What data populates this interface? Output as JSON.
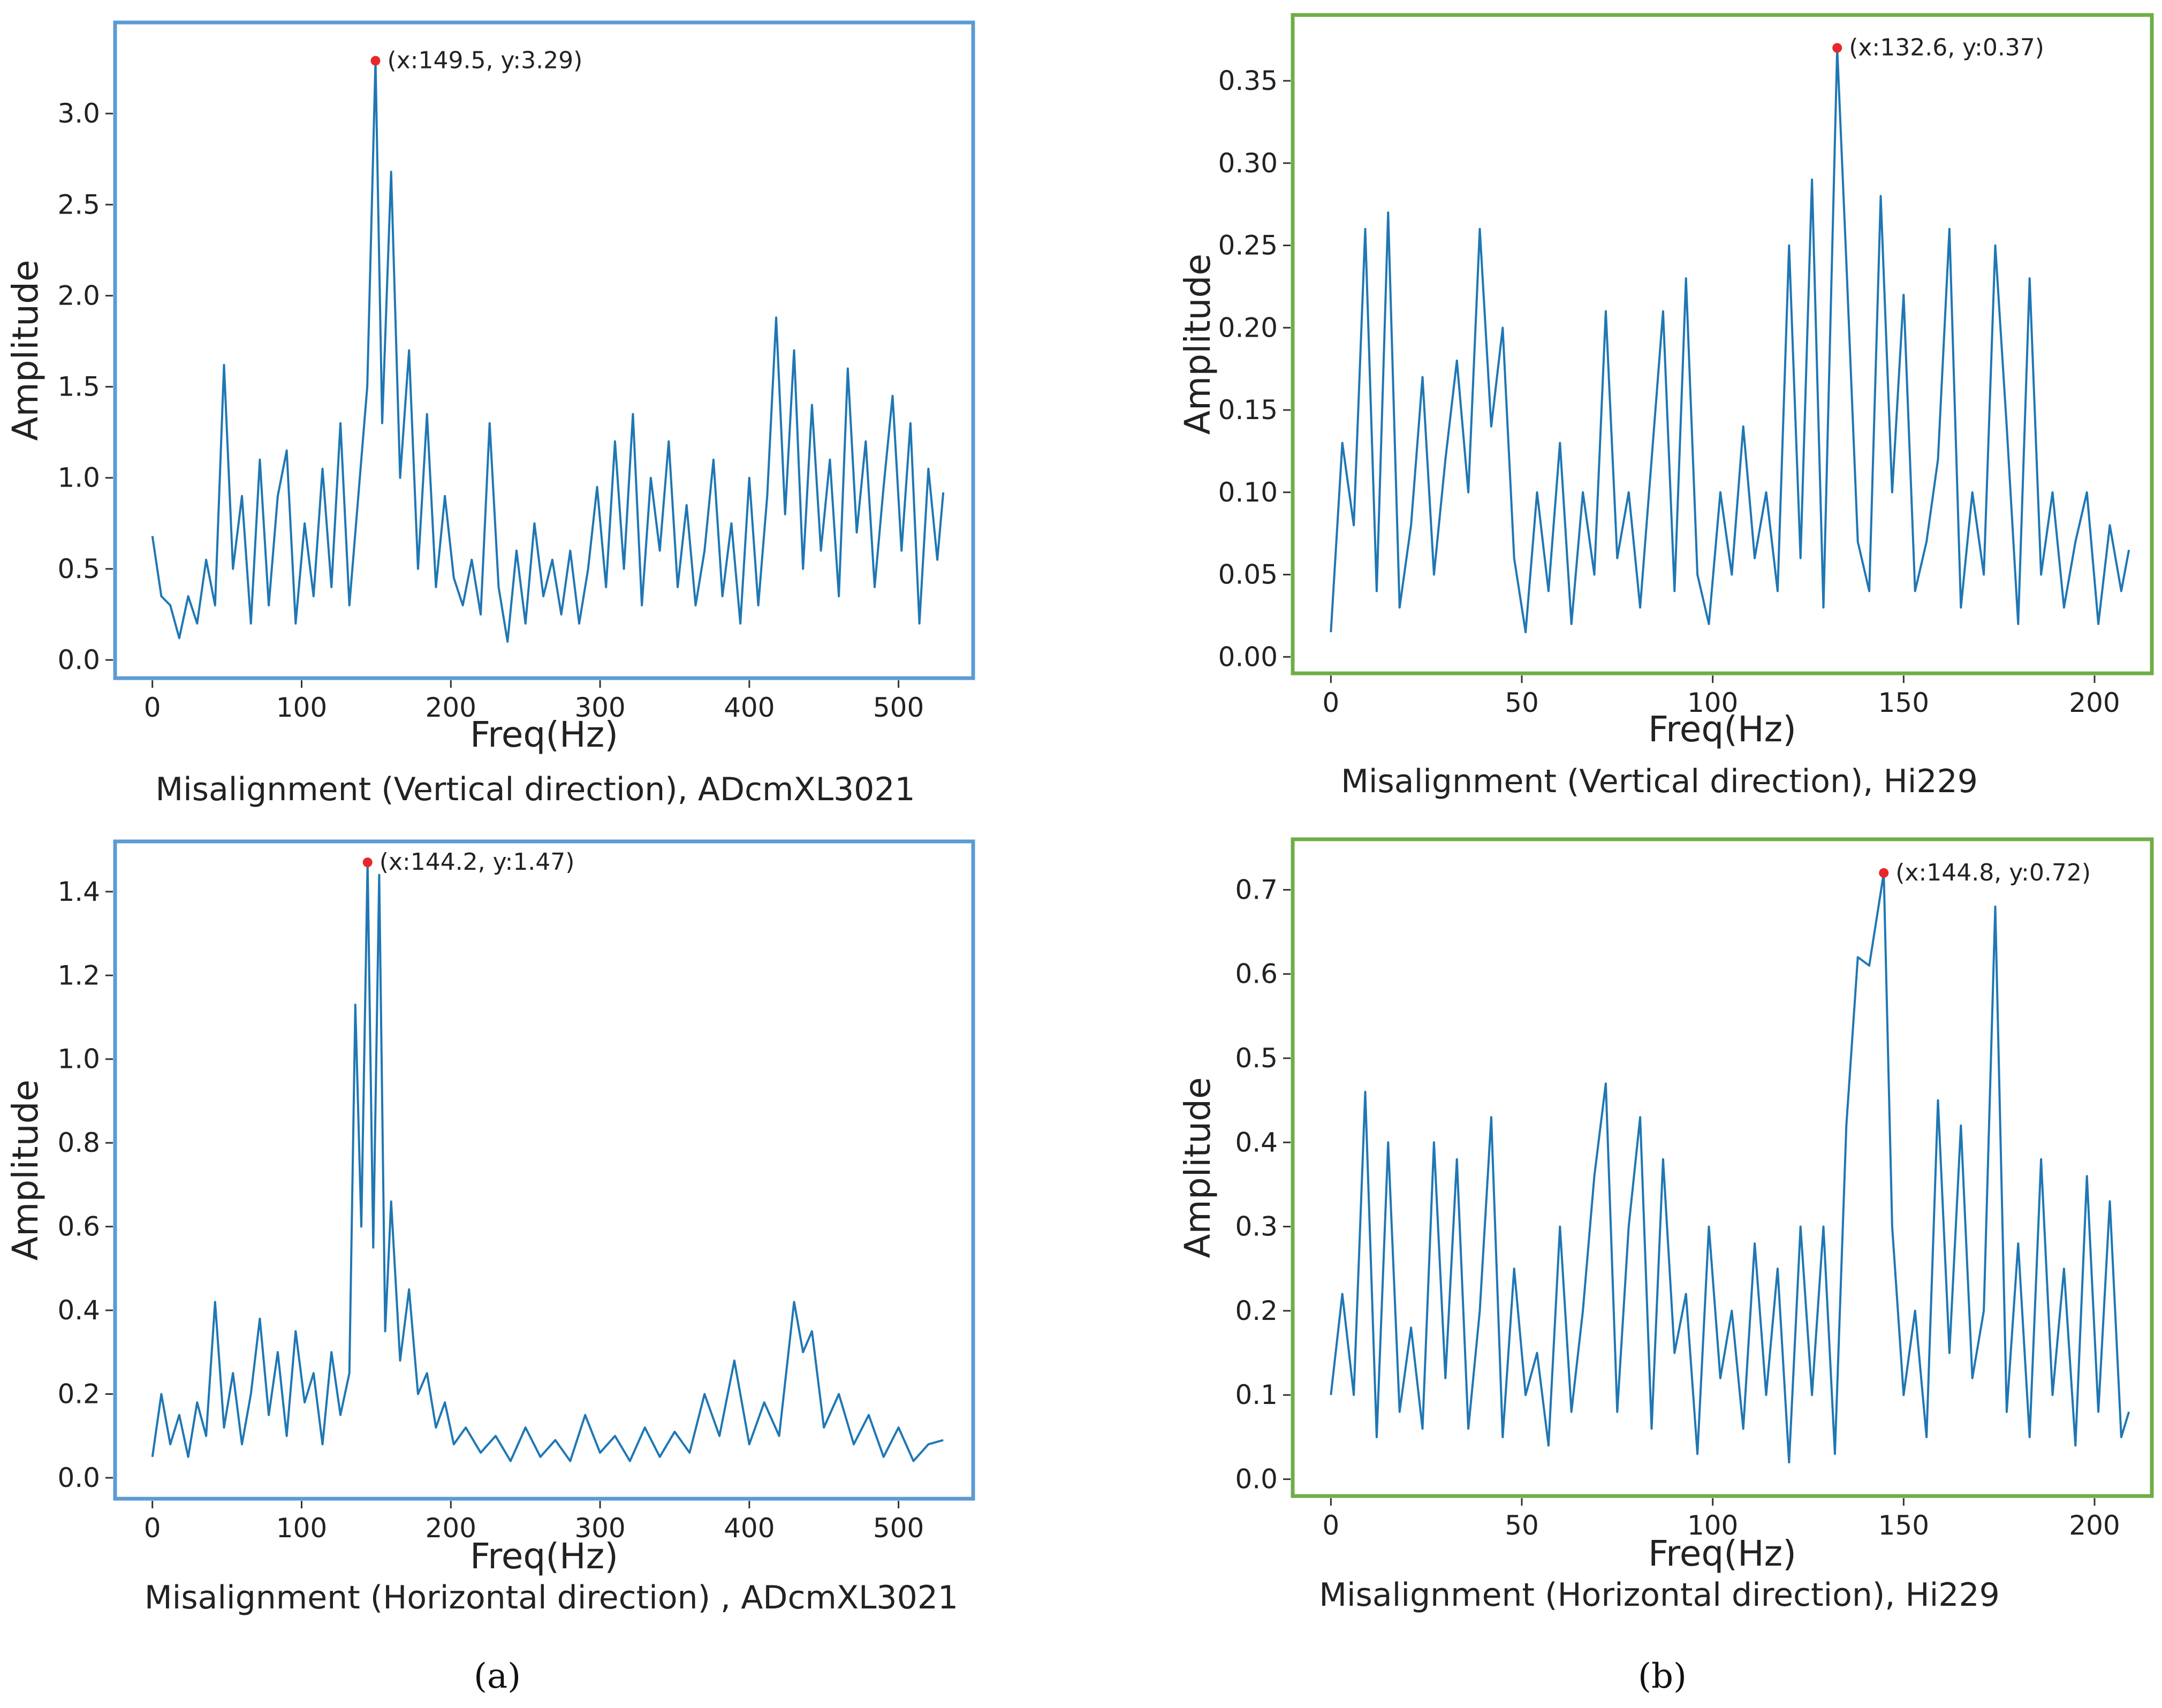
{
  "chart_data": [
    {
      "type": "line",
      "title": "",
      "caption": "Misalignment (Vertical direction), ADcmXL3021",
      "xlabel": "Freq(Hz)",
      "ylabel": "Amplitude",
      "xlim": [
        -25,
        550
      ],
      "ylim": [
        -0.1,
        3.5
      ],
      "xticks": [
        0,
        100,
        200,
        300,
        400,
        500
      ],
      "xtick_labels": [
        "0",
        "100",
        "200",
        "300",
        "400",
        "500"
      ],
      "yticks": [
        0.0,
        0.5,
        1.0,
        1.5,
        2.0,
        2.5,
        3.0
      ],
      "ytick_labels": [
        "0.0",
        "0.5",
        "1.0",
        "1.5",
        "2.0",
        "2.5",
        "3.0"
      ],
      "frame_color": "#5b9bd5",
      "line_color": "#1f77b4",
      "peak": {
        "x": 149.5,
        "y": 3.29,
        "label": "(x:149.5, y:3.29)"
      },
      "series": [
        {
          "name": "spectrum",
          "x": [
            0,
            6,
            12,
            18,
            24,
            30,
            36,
            42,
            48,
            54,
            60,
            66,
            72,
            78,
            84,
            90,
            96,
            102,
            108,
            114,
            120,
            126,
            132,
            138,
            144,
            149.5,
            154,
            160,
            166,
            172,
            178,
            184,
            190,
            196,
            202,
            208,
            214,
            220,
            226,
            232,
            238,
            244,
            250,
            256,
            262,
            268,
            274,
            280,
            286,
            292,
            298,
            304,
            310,
            316,
            322,
            328,
            334,
            340,
            346,
            352,
            358,
            364,
            370,
            376,
            382,
            388,
            394,
            400,
            406,
            412,
            418,
            424,
            430,
            436,
            442,
            448,
            454,
            460,
            466,
            472,
            478,
            484,
            490,
            496,
            502,
            508,
            514,
            520,
            526,
            530
          ],
          "values": [
            0.68,
            0.35,
            0.3,
            0.12,
            0.35,
            0.2,
            0.55,
            0.3,
            1.62,
            0.5,
            0.9,
            0.2,
            1.1,
            0.3,
            0.9,
            1.15,
            0.2,
            0.75,
            0.35,
            1.05,
            0.4,
            1.3,
            0.3,
            0.9,
            1.5,
            3.29,
            1.3,
            2.68,
            1.0,
            1.7,
            0.5,
            1.35,
            0.4,
            0.9,
            0.45,
            0.3,
            0.55,
            0.25,
            1.3,
            0.4,
            0.1,
            0.6,
            0.2,
            0.75,
            0.35,
            0.55,
            0.25,
            0.6,
            0.2,
            0.5,
            0.95,
            0.4,
            1.2,
            0.5,
            1.35,
            0.3,
            1.0,
            0.6,
            1.2,
            0.4,
            0.85,
            0.3,
            0.6,
            1.1,
            0.35,
            0.75,
            0.2,
            1.0,
            0.3,
            0.9,
            1.88,
            0.8,
            1.7,
            0.5,
            1.4,
            0.6,
            1.1,
            0.35,
            1.6,
            0.7,
            1.2,
            0.4,
            0.95,
            1.45,
            0.6,
            1.3,
            0.2,
            1.05,
            0.55,
            0.92
          ]
        }
      ]
    },
    {
      "type": "line",
      "title": "",
      "caption": "Misalignment (Vertical direction), Hi229",
      "xlabel": "Freq(Hz)",
      "ylabel": "Amplitude",
      "xlim": [
        -10,
        215
      ],
      "ylim": [
        -0.01,
        0.39
      ],
      "xticks": [
        0,
        50,
        100,
        150,
        200
      ],
      "xtick_labels": [
        "0",
        "50",
        "100",
        "150",
        "200"
      ],
      "yticks": [
        0.0,
        0.05,
        0.1,
        0.15,
        0.2,
        0.25,
        0.3,
        0.35
      ],
      "ytick_labels": [
        "0.00",
        "0.05",
        "0.10",
        "0.15",
        "0.20",
        "0.25",
        "0.30",
        "0.35"
      ],
      "frame_color": "#70ad47",
      "line_color": "#1f77b4",
      "peak": {
        "x": 132.6,
        "y": 0.37,
        "label": "(x:132.6, y:0.37)"
      },
      "series": [
        {
          "name": "spectrum",
          "x": [
            0,
            3,
            6,
            9,
            12,
            15,
            18,
            21,
            24,
            27,
            30,
            33,
            36,
            39,
            42,
            45,
            48,
            51,
            54,
            57,
            60,
            63,
            66,
            69,
            72,
            75,
            78,
            81,
            84,
            87,
            90,
            93,
            96,
            99,
            102,
            105,
            108,
            111,
            114,
            117,
            120,
            123,
            126,
            129,
            132.6,
            135,
            138,
            141,
            144,
            147,
            150,
            153,
            156,
            159,
            162,
            165,
            168,
            171,
            174,
            177,
            180,
            183,
            186,
            189,
            192,
            195,
            198,
            201,
            204,
            207,
            209
          ],
          "values": [
            0.015,
            0.13,
            0.08,
            0.26,
            0.04,
            0.27,
            0.03,
            0.08,
            0.17,
            0.05,
            0.12,
            0.18,
            0.1,
            0.26,
            0.14,
            0.2,
            0.06,
            0.015,
            0.1,
            0.04,
            0.13,
            0.02,
            0.1,
            0.05,
            0.21,
            0.06,
            0.1,
            0.03,
            0.12,
            0.21,
            0.04,
            0.23,
            0.05,
            0.02,
            0.1,
            0.05,
            0.14,
            0.06,
            0.1,
            0.04,
            0.25,
            0.06,
            0.29,
            0.03,
            0.37,
            0.24,
            0.07,
            0.04,
            0.28,
            0.1,
            0.22,
            0.04,
            0.07,
            0.12,
            0.26,
            0.03,
            0.1,
            0.05,
            0.25,
            0.14,
            0.02,
            0.23,
            0.05,
            0.1,
            0.03,
            0.07,
            0.1,
            0.02,
            0.08,
            0.04,
            0.065
          ]
        }
      ]
    },
    {
      "type": "line",
      "title": "",
      "caption": "Misalignment (Horizontal direction) , ADcmXL3021",
      "xlabel": "Freq(Hz)",
      "ylabel": "Amplitude",
      "xlim": [
        -25,
        550
      ],
      "ylim": [
        -0.05,
        1.52
      ],
      "xticks": [
        0,
        100,
        200,
        300,
        400,
        500
      ],
      "xtick_labels": [
        "0",
        "100",
        "200",
        "300",
        "400",
        "500"
      ],
      "yticks": [
        0.0,
        0.2,
        0.4,
        0.6,
        0.8,
        1.0,
        1.2,
        1.4
      ],
      "ytick_labels": [
        "0.0",
        "0.2",
        "0.4",
        "0.6",
        "0.8",
        "1.0",
        "1.2",
        "1.4"
      ],
      "frame_color": "#5b9bd5",
      "line_color": "#1f77b4",
      "peak": {
        "x": 144.2,
        "y": 1.47,
        "label": "(x:144.2, y:1.47)"
      },
      "series": [
        {
          "name": "spectrum",
          "x": [
            0,
            6,
            12,
            18,
            24,
            30,
            36,
            42,
            48,
            54,
            60,
            66,
            72,
            78,
            84,
            90,
            96,
            102,
            108,
            114,
            120,
            126,
            132,
            136,
            140,
            144.2,
            148,
            152,
            156,
            160,
            166,
            172,
            178,
            184,
            190,
            196,
            202,
            210,
            220,
            230,
            240,
            250,
            260,
            270,
            280,
            290,
            300,
            310,
            320,
            330,
            340,
            350,
            360,
            370,
            380,
            390,
            400,
            410,
            420,
            430,
            436,
            442,
            450,
            460,
            470,
            480,
            490,
            500,
            510,
            520,
            530
          ],
          "values": [
            0.05,
            0.2,
            0.08,
            0.15,
            0.05,
            0.18,
            0.1,
            0.42,
            0.12,
            0.25,
            0.08,
            0.2,
            0.38,
            0.15,
            0.3,
            0.1,
            0.35,
            0.18,
            0.25,
            0.08,
            0.3,
            0.15,
            0.25,
            1.13,
            0.6,
            1.47,
            0.55,
            1.44,
            0.35,
            0.66,
            0.28,
            0.45,
            0.2,
            0.25,
            0.12,
            0.18,
            0.08,
            0.12,
            0.06,
            0.1,
            0.04,
            0.12,
            0.05,
            0.09,
            0.04,
            0.15,
            0.06,
            0.1,
            0.04,
            0.12,
            0.05,
            0.11,
            0.06,
            0.2,
            0.1,
            0.28,
            0.08,
            0.18,
            0.1,
            0.42,
            0.3,
            0.35,
            0.12,
            0.2,
            0.08,
            0.15,
            0.05,
            0.12,
            0.04,
            0.08,
            0.09
          ]
        }
      ]
    },
    {
      "type": "line",
      "title": "",
      "caption": "Misalignment (Horizontal direction), Hi229",
      "xlabel": "Freq(Hz)",
      "ylabel": "Amplitude",
      "xlim": [
        -10,
        215
      ],
      "ylim": [
        -0.02,
        0.76
      ],
      "xticks": [
        0,
        50,
        100,
        150,
        200
      ],
      "xtick_labels": [
        "0",
        "50",
        "100",
        "150",
        "200"
      ],
      "yticks": [
        0.0,
        0.1,
        0.2,
        0.3,
        0.4,
        0.5,
        0.6,
        0.7
      ],
      "ytick_labels": [
        "0.0",
        "0.1",
        "0.2",
        "0.3",
        "0.4",
        "0.5",
        "0.6",
        "0.7"
      ],
      "frame_color": "#70ad47",
      "line_color": "#1f77b4",
      "peak": {
        "x": 144.8,
        "y": 0.72,
        "label": "(x:144.8, y:0.72)"
      },
      "series": [
        {
          "name": "spectrum",
          "x": [
            0,
            3,
            6,
            9,
            12,
            15,
            18,
            21,
            24,
            27,
            30,
            33,
            36,
            39,
            42,
            45,
            48,
            51,
            54,
            57,
            60,
            63,
            66,
            69,
            72,
            75,
            78,
            81,
            84,
            87,
            90,
            93,
            96,
            99,
            102,
            105,
            108,
            111,
            114,
            117,
            120,
            123,
            126,
            129,
            132,
            135,
            138,
            141,
            144.8,
            147,
            150,
            153,
            156,
            159,
            162,
            165,
            168,
            171,
            174,
            177,
            180,
            183,
            186,
            189,
            192,
            195,
            198,
            201,
            204,
            207,
            209
          ],
          "values": [
            0.1,
            0.22,
            0.1,
            0.46,
            0.05,
            0.4,
            0.08,
            0.18,
            0.06,
            0.4,
            0.12,
            0.38,
            0.06,
            0.2,
            0.43,
            0.05,
            0.25,
            0.1,
            0.15,
            0.04,
            0.3,
            0.08,
            0.2,
            0.36,
            0.47,
            0.08,
            0.3,
            0.43,
            0.06,
            0.38,
            0.15,
            0.22,
            0.03,
            0.3,
            0.12,
            0.2,
            0.06,
            0.28,
            0.1,
            0.25,
            0.02,
            0.3,
            0.1,
            0.3,
            0.03,
            0.42,
            0.62,
            0.61,
            0.72,
            0.3,
            0.1,
            0.2,
            0.05,
            0.45,
            0.15,
            0.42,
            0.12,
            0.2,
            0.68,
            0.08,
            0.28,
            0.05,
            0.38,
            0.1,
            0.25,
            0.04,
            0.36,
            0.08,
            0.33,
            0.05,
            0.08
          ]
        }
      ]
    }
  ],
  "panel_labels": {
    "a": "(a)",
    "b": "(b)"
  }
}
